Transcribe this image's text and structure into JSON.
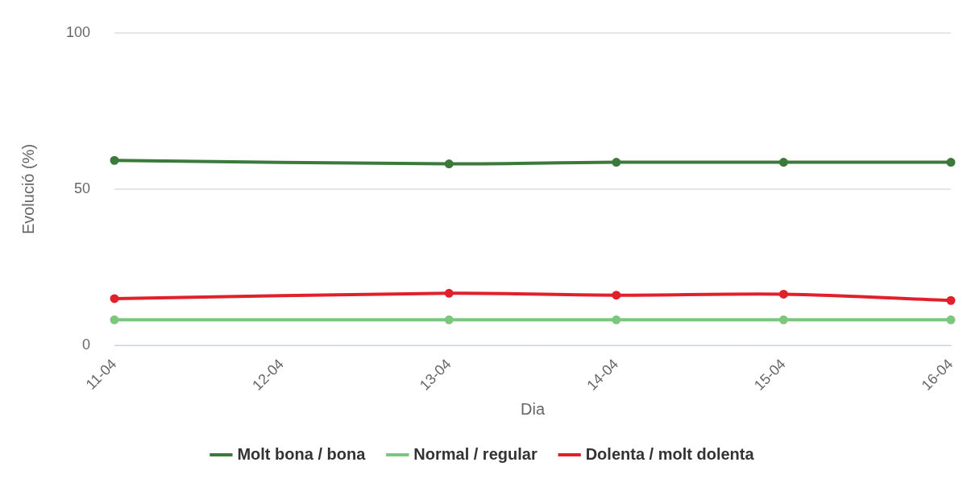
{
  "chart_data": {
    "type": "line",
    "x_label": "Dia",
    "y_label": "Evolució (%)",
    "categories": [
      "11-04",
      "12-04",
      "13-04",
      "14-04",
      "15-04",
      "16-04"
    ],
    "series": [
      {
        "name": "Molt bona / bona",
        "color": "#3b7a3b",
        "values": [
          59.2,
          null,
          58.1,
          58.6,
          58.6,
          58.6
        ]
      },
      {
        "name": "Normal / regular",
        "color": "#7dc67d",
        "values": [
          8.2,
          null,
          8.2,
          8.2,
          8.2,
          8.2
        ]
      },
      {
        "name": "Dolenta / molt dolenta",
        "color": "#e0212b",
        "values": [
          15.0,
          null,
          16.7,
          16.1,
          16.4,
          14.4
        ]
      }
    ],
    "ylim": [
      0,
      100
    ],
    "yticks": [
      0,
      50,
      100
    ],
    "grid": true,
    "legend": "bottom"
  }
}
